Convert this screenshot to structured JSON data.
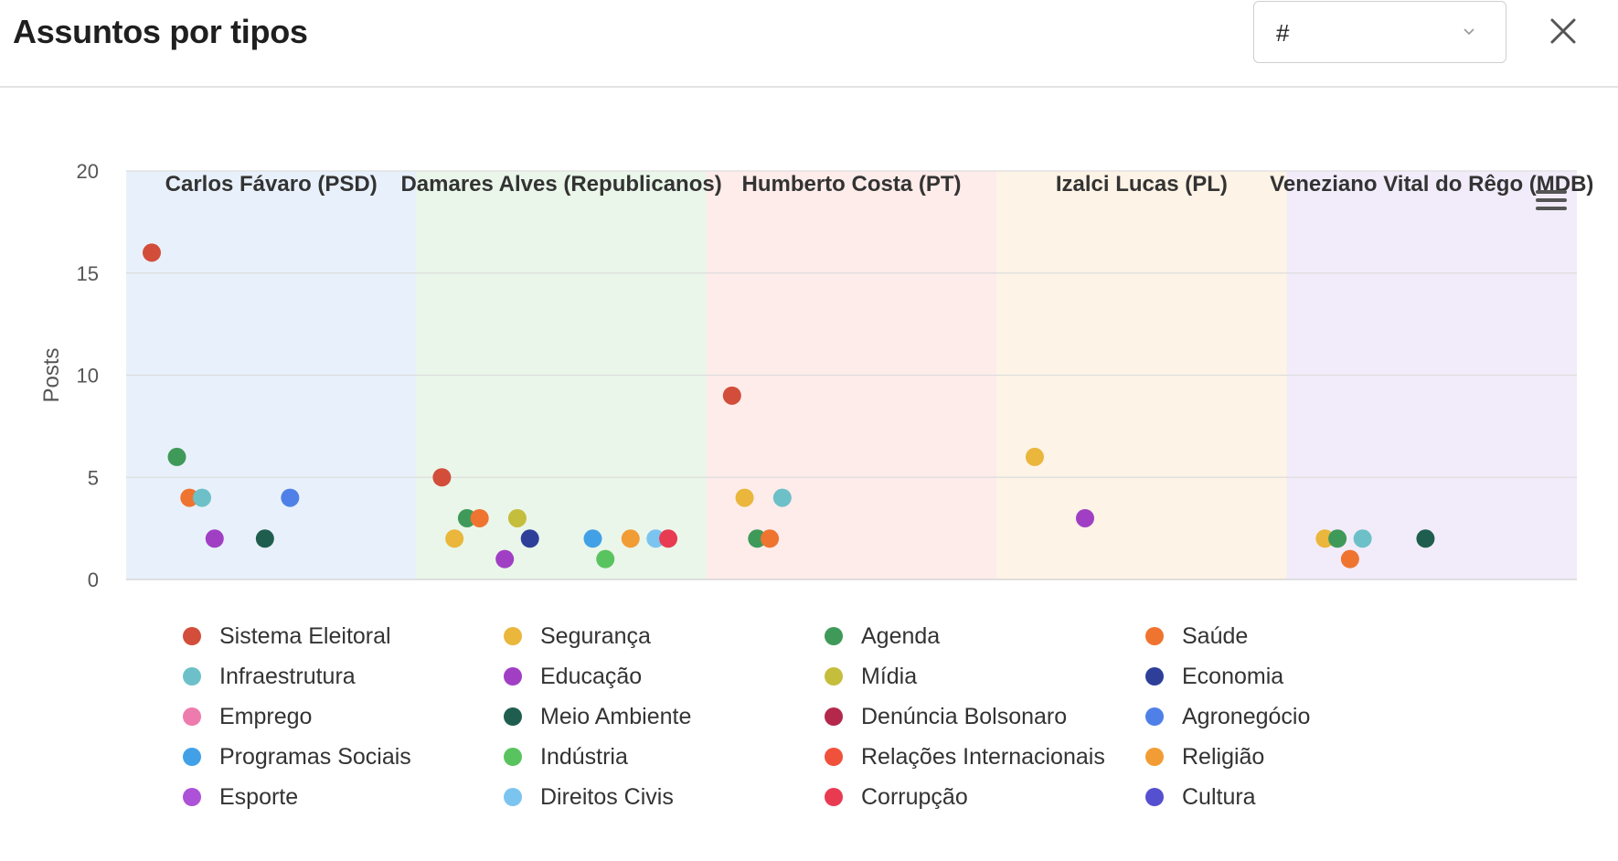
{
  "header": {
    "title": "Assuntos por tipos",
    "select_value": "#"
  },
  "chart_data": {
    "type": "scatter",
    "ylabel": "Posts",
    "ylim": [
      0,
      20
    ],
    "yticks": [
      0,
      5,
      10,
      15,
      20
    ],
    "groups": [
      {
        "name": "Carlos Fávaro (PSD)",
        "band_color": "#e8f1fb"
      },
      {
        "name": "Damares Alves (Republicanos)",
        "band_color": "#eaf6ea"
      },
      {
        "name": "Humberto Costa (PT)",
        "band_color": "#fdecea"
      },
      {
        "name": "Izalci Lucas (PL)",
        "band_color": "#fdf3e6"
      },
      {
        "name": "Veneziano Vital do Rêgo (MDB)",
        "band_color": "#f2ecfa"
      }
    ],
    "series": [
      {
        "name": "Sistema Eleitoral",
        "color": "#d24e3b"
      },
      {
        "name": "Segurança",
        "color": "#eab63c"
      },
      {
        "name": "Agenda",
        "color": "#3f9a5a"
      },
      {
        "name": "Saúde",
        "color": "#ef7430"
      },
      {
        "name": "Infraestrutura",
        "color": "#6dc0c8"
      },
      {
        "name": "Educação",
        "color": "#a03fc4"
      },
      {
        "name": "Mídia",
        "color": "#c5bd3c"
      },
      {
        "name": "Economia",
        "color": "#2e3f9a"
      },
      {
        "name": "Emprego",
        "color": "#ee7bad"
      },
      {
        "name": "Meio Ambiente",
        "color": "#1f5e4f"
      },
      {
        "name": "Denúncia Bolsonaro",
        "color": "#b3284b"
      },
      {
        "name": "Agronegócio",
        "color": "#4f80e8"
      },
      {
        "name": "Programas Sociais",
        "color": "#42a1e6"
      },
      {
        "name": "Indústria",
        "color": "#59c45f"
      },
      {
        "name": "Relações Internacionais",
        "color": "#f0513a"
      },
      {
        "name": "Religião",
        "color": "#f29c35"
      },
      {
        "name": "Esporte",
        "color": "#ad52d8"
      },
      {
        "name": "Direitos Civis",
        "color": "#7cc4f0"
      },
      {
        "name": "Corrupção",
        "color": "#e83b52"
      },
      {
        "name": "Cultura",
        "color": "#5550cf"
      }
    ],
    "points": [
      {
        "group": 0,
        "series": "Sistema Eleitoral",
        "y": 16
      },
      {
        "group": 0,
        "series": "Agenda",
        "y": 6
      },
      {
        "group": 0,
        "series": "Saúde",
        "y": 4
      },
      {
        "group": 0,
        "series": "Infraestrutura",
        "y": 4
      },
      {
        "group": 0,
        "series": "Educação",
        "y": 2
      },
      {
        "group": 0,
        "series": "Meio Ambiente",
        "y": 2
      },
      {
        "group": 0,
        "series": "Agronegócio",
        "y": 4
      },
      {
        "group": 1,
        "series": "Sistema Eleitoral",
        "y": 5
      },
      {
        "group": 1,
        "series": "Segurança",
        "y": 2
      },
      {
        "group": 1,
        "series": "Agenda",
        "y": 3
      },
      {
        "group": 1,
        "series": "Saúde",
        "y": 3
      },
      {
        "group": 1,
        "series": "Educação",
        "y": 1
      },
      {
        "group": 1,
        "series": "Mídia",
        "y": 3
      },
      {
        "group": 1,
        "series": "Economia",
        "y": 2
      },
      {
        "group": 1,
        "series": "Programas Sociais",
        "y": 2
      },
      {
        "group": 1,
        "series": "Indústria",
        "y": 1
      },
      {
        "group": 1,
        "series": "Religião",
        "y": 2
      },
      {
        "group": 1,
        "series": "Direitos Civis",
        "y": 2
      },
      {
        "group": 1,
        "series": "Corrupção",
        "y": 2
      },
      {
        "group": 2,
        "series": "Sistema Eleitoral",
        "y": 9
      },
      {
        "group": 2,
        "series": "Segurança",
        "y": 4
      },
      {
        "group": 2,
        "series": "Agenda",
        "y": 2
      },
      {
        "group": 2,
        "series": "Saúde",
        "y": 2
      },
      {
        "group": 2,
        "series": "Infraestrutura",
        "y": 4
      },
      {
        "group": 3,
        "series": "Segurança",
        "y": 6
      },
      {
        "group": 3,
        "series": "Educação",
        "y": 3
      },
      {
        "group": 4,
        "series": "Segurança",
        "y": 2
      },
      {
        "group": 4,
        "series": "Agenda",
        "y": 2
      },
      {
        "group": 4,
        "series": "Saúde",
        "y": 1
      },
      {
        "group": 4,
        "series": "Infraestrutura",
        "y": 2
      },
      {
        "group": 4,
        "series": "Meio Ambiente",
        "y": 2
      }
    ],
    "grid": true,
    "legend_position": "bottom"
  }
}
